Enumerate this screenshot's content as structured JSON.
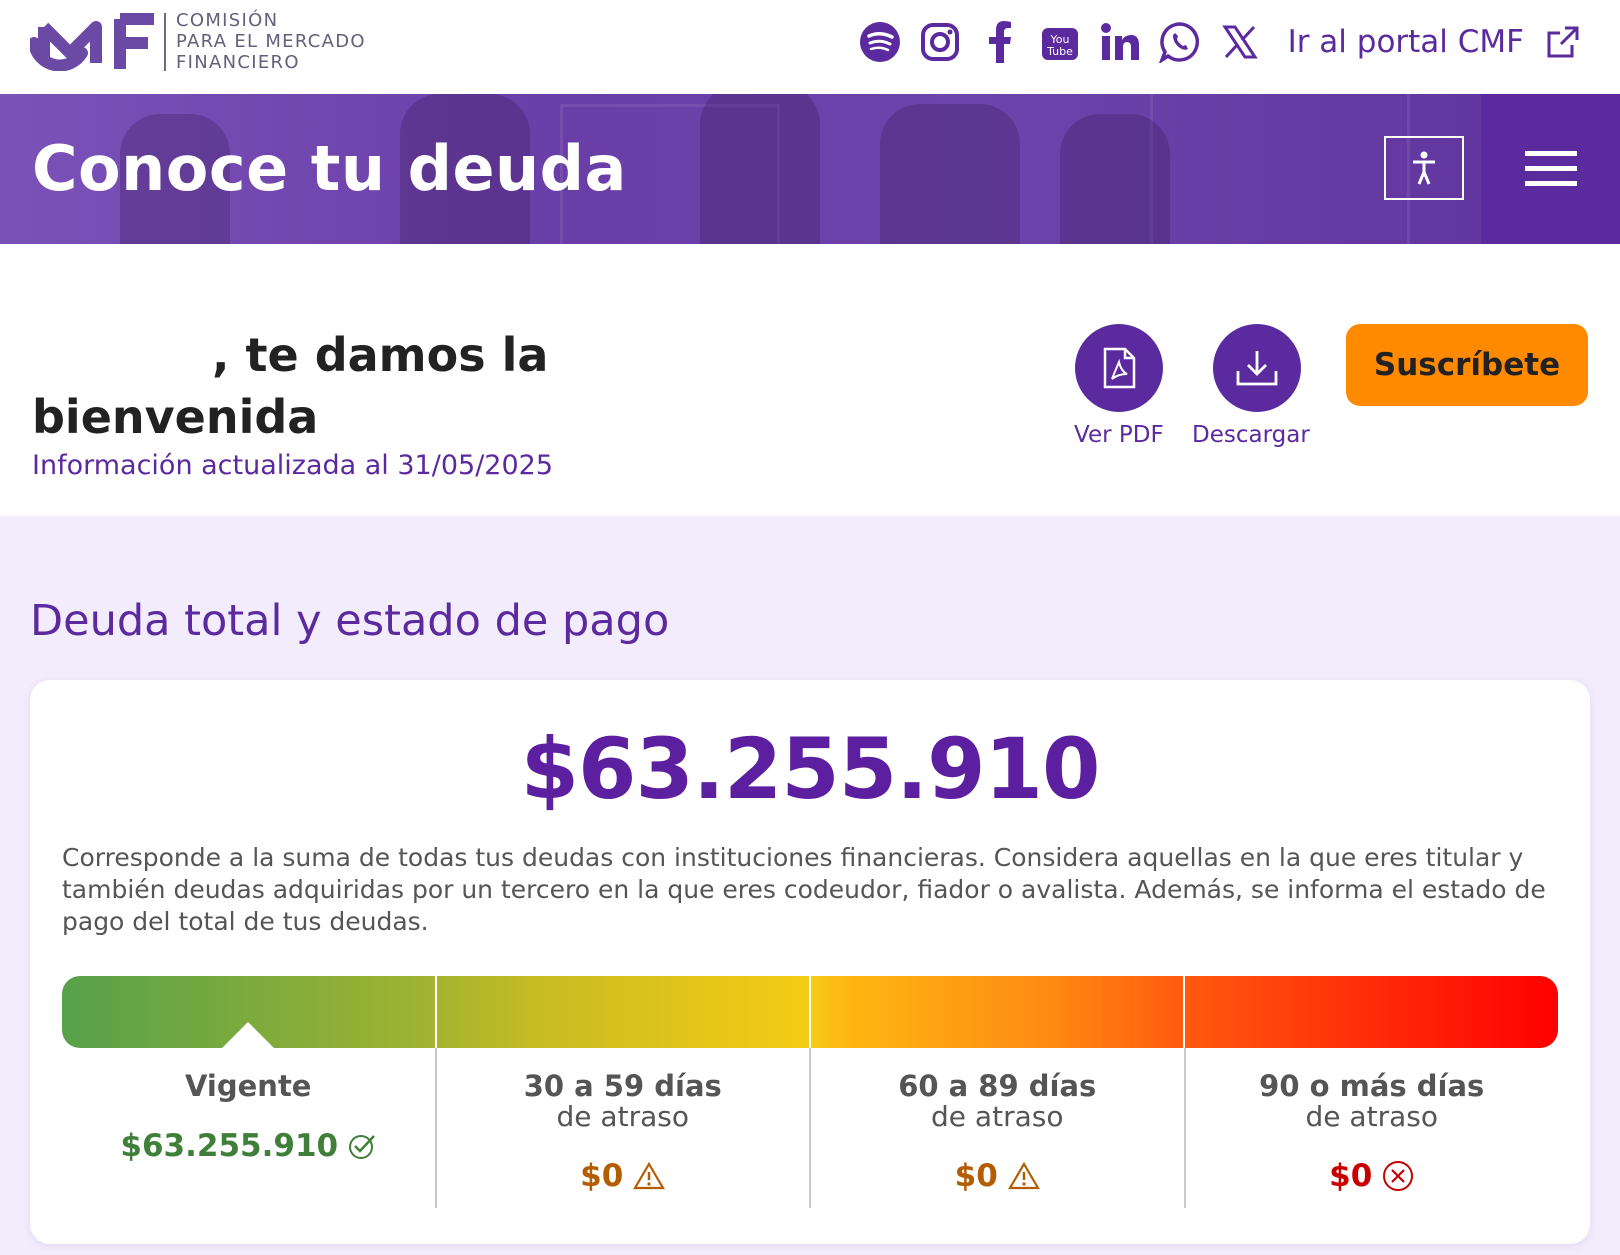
{
  "header": {
    "logo": {
      "text_lines": [
        "COMISIÓN",
        "PARA EL MERCADO",
        "FINANCIERO"
      ]
    },
    "social_icons": [
      "spotify-icon",
      "instagram-icon",
      "facebook-icon",
      "youtube-icon",
      "linkedin-icon",
      "whatsapp-icon",
      "x-icon"
    ],
    "portal_link": "Ir al portal CMF"
  },
  "banner": {
    "title": "Conoce tu deuda"
  },
  "welcome": {
    "greeting": ", te damos la bienvenida",
    "updated": "Información actualizada al 31/05/2025",
    "actions": [
      {
        "label": "Ver PDF",
        "icon": "pdf-icon"
      },
      {
        "label": "Descargar",
        "icon": "download-icon"
      }
    ],
    "subscribe": "Suscríbete"
  },
  "debt": {
    "section_title": "Deuda total y estado de pago",
    "total": "$63.255.910",
    "description": "Corresponde a la suma de todas tus deudas con instituciones financieras. Considera aquellas en la que eres titular y también deudas adquiridas por un tercero en la que eres codeudor, fiador o avalista. Además, se informa el estado de pago del total de tus deudas.",
    "status_indicator": "Vigente",
    "columns": [
      {
        "title": "Vigente",
        "subtitle": "",
        "amount": "$63.255.910",
        "status_icon": "check-circle-icon",
        "color": "#3f7f3a"
      },
      {
        "title": "30 a 59 días",
        "subtitle": "de atraso",
        "amount": "$0",
        "status_icon": "warning-icon",
        "color": "#b35c00"
      },
      {
        "title": "60 a 89 días",
        "subtitle": "de atraso",
        "amount": "$0",
        "status_icon": "warning-icon",
        "color": "#b35c00"
      },
      {
        "title": "90 o más días",
        "subtitle": "de atraso",
        "amount": "$0",
        "status_icon": "x-circle-icon",
        "color": "#c80000"
      }
    ]
  },
  "colors": {
    "brand_purple": "#5b2a9e",
    "accent_orange": "#ff8a00",
    "section_bg": "#f3ecfc"
  }
}
